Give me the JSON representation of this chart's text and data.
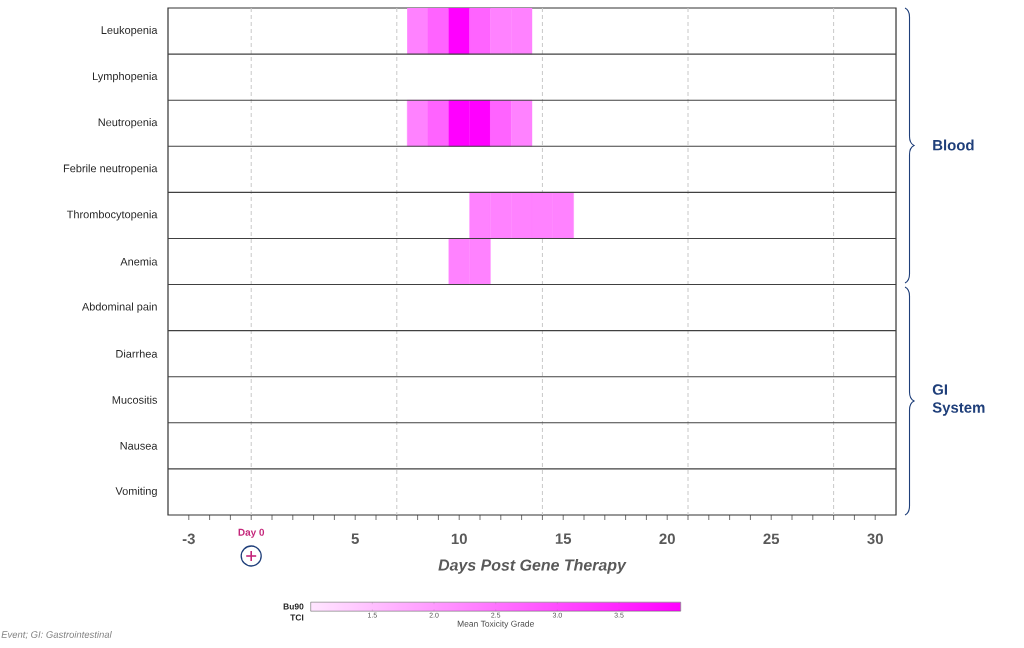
{
  "chart_data": {
    "type": "heatmap",
    "x": [
      8,
      9,
      10,
      11,
      12,
      13,
      14,
      15
    ],
    "y_categories": [
      "Leukopenia",
      "Lymphopenia",
      "Neutropenia",
      "Febrile neutropenia",
      "Thrombocytopenia",
      "Anemia",
      "Abdominal pain",
      "Diarrhea",
      "Mucositis",
      "Nausea",
      "Vomiting"
    ],
    "cells": [
      [
        2.3,
        2.7,
        4.0,
        2.7,
        2.3,
        2.3,
        null,
        null
      ],
      [
        null,
        null,
        null,
        null,
        null,
        null,
        null,
        null
      ],
      [
        2.3,
        2.7,
        4.0,
        4.0,
        2.7,
        2.3,
        null,
        null
      ],
      [
        null,
        null,
        null,
        null,
        null,
        null,
        null,
        null
      ],
      [
        null,
        null,
        null,
        2.3,
        2.3,
        2.3,
        2.3,
        2.3
      ],
      [
        null,
        null,
        2.3,
        2.3,
        null,
        null,
        null,
        null
      ],
      [
        null,
        null,
        null,
        null,
        null,
        null,
        null,
        null
      ],
      [
        null,
        null,
        null,
        null,
        null,
        null,
        null,
        null
      ],
      [
        null,
        null,
        null,
        null,
        null,
        null,
        null,
        null
      ],
      [
        null,
        null,
        null,
        null,
        null,
        null,
        null,
        null
      ],
      [
        null,
        null,
        null,
        null,
        null,
        null,
        null,
        null
      ]
    ],
    "xlim": [
      -4,
      31
    ],
    "xticks": [
      -3,
      {
        "value": -2,
        "label": null
      },
      {
        "value": -1,
        "label": null
      },
      {
        "value": 0,
        "label": null
      },
      {
        "value": 1,
        "label": null
      },
      {
        "value": 2,
        "label": null
      },
      {
        "value": 3,
        "label": null
      },
      {
        "value": 4,
        "label": null
      },
      5,
      {
        "value": 6,
        "label": null
      },
      {
        "value": 7,
        "label": null
      },
      {
        "value": 8,
        "label": null
      },
      {
        "value": 9,
        "label": null
      },
      10,
      {
        "value": 11,
        "label": null
      },
      {
        "value": 12,
        "label": null
      },
      {
        "value": 13,
        "label": null
      },
      {
        "value": 14,
        "label": null
      },
      15,
      {
        "value": 16,
        "label": null
      },
      {
        "value": 17,
        "label": null
      },
      {
        "value": 18,
        "label": null
      },
      {
        "value": 19,
        "label": null
      },
      20,
      {
        "value": 21,
        "label": null
      },
      {
        "value": 22,
        "label": null
      },
      {
        "value": 23,
        "label": null
      },
      {
        "value": 24,
        "label": null
      },
      25,
      {
        "value": 26,
        "label": null
      },
      {
        "value": 27,
        "label": null
      },
      {
        "value": 28,
        "label": null
      },
      {
        "value": 29,
        "label": null
      },
      30
    ],
    "xlabel": "Days Post Gene Therapy",
    "clim": [
      1,
      4
    ],
    "cticks": [
      1.5,
      {
        "value": 2,
        "label": "2.0"
      },
      2.5,
      {
        "value": 3,
        "label": "3.0"
      },
      3.5
    ],
    "clabel": "Mean Toxicity Grade",
    "ref_lines": [
      {
        "axis": "x",
        "value": 0,
        "color": "#c8c8c8",
        "line_style": "dashed"
      },
      {
        "axis": "x",
        "value": 7,
        "color": "#c8c8c8",
        "line_style": "dashed"
      },
      {
        "axis": "x",
        "value": 14,
        "color": "#c8c8c8",
        "line_style": "dashed"
      },
      {
        "axis": "x",
        "value": 21,
        "color": "#c8c8c8",
        "line_style": "dashed"
      },
      {
        "axis": "x",
        "value": 28,
        "color": "#c8c8c8",
        "line_style": "dashed"
      }
    ],
    "annotations": [
      "Day 0",
      "Blood",
      "GI System",
      "Bu90 TCI",
      "Event; GI: Gastrointestinal"
    ]
  }
}
